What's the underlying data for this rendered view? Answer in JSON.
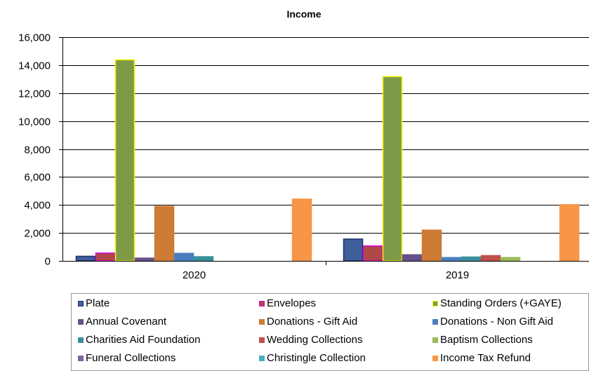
{
  "chart_data": {
    "type": "bar",
    "title": "Income",
    "categories": [
      "2020",
      "2019"
    ],
    "ylim": [
      0,
      16000
    ],
    "yticks": [
      "0",
      "2,000",
      "4,000",
      "6,000",
      "8,000",
      "10,000",
      "12,000",
      "14,000",
      "16,000"
    ],
    "series": [
      {
        "name": "Plate",
        "values": [
          330,
          1560
        ],
        "color": "#3f5f9b",
        "border": "#1f2f6b"
      },
      {
        "name": "Envelopes",
        "values": [
          560,
          1070
        ],
        "color": "#b04747",
        "border": "#e000e0"
      },
      {
        "name": "Standing Orders (+GAYE)",
        "values": [
          14380,
          13180
        ],
        "color": "#7f9a47",
        "border": "#f2f200"
      },
      {
        "name": "Annual Covenant",
        "values": [
          200,
          440
        ],
        "color": "#66508a",
        "border": "#66508a"
      },
      {
        "name": "Donations - Gift Aid",
        "values": [
          3900,
          2200
        ],
        "color": "#ce7b36",
        "border": "#ce7b36"
      },
      {
        "name": "Donations - Non Gift Aid",
        "values": [
          540,
          240
        ],
        "color": "#4a7fbf",
        "border": "#4a7fbf"
      },
      {
        "name": "Charities Aid Foundation",
        "values": [
          300,
          280
        ],
        "color": "#3a8f9c",
        "border": "#3a8f9c"
      },
      {
        "name": "Wedding Collections",
        "values": [
          0,
          380
        ],
        "color": "#c0504d",
        "border": "#c0504d"
      },
      {
        "name": "Baptism Collections",
        "values": [
          0,
          240
        ],
        "color": "#9bbb59",
        "border": "#9bbb59"
      },
      {
        "name": "Funeral Collections",
        "values": [
          0,
          0
        ],
        "color": "#8064a2",
        "border": "#8064a2"
      },
      {
        "name": "Christingle Collection",
        "values": [
          0,
          0
        ],
        "color": "#4bacc6",
        "border": "#4bacc6"
      },
      {
        "name": "Income Tax Refund",
        "values": [
          4420,
          4020
        ],
        "color": "#f79646",
        "border": "#f79646"
      }
    ],
    "grid": true,
    "legend_position": "bottom"
  }
}
